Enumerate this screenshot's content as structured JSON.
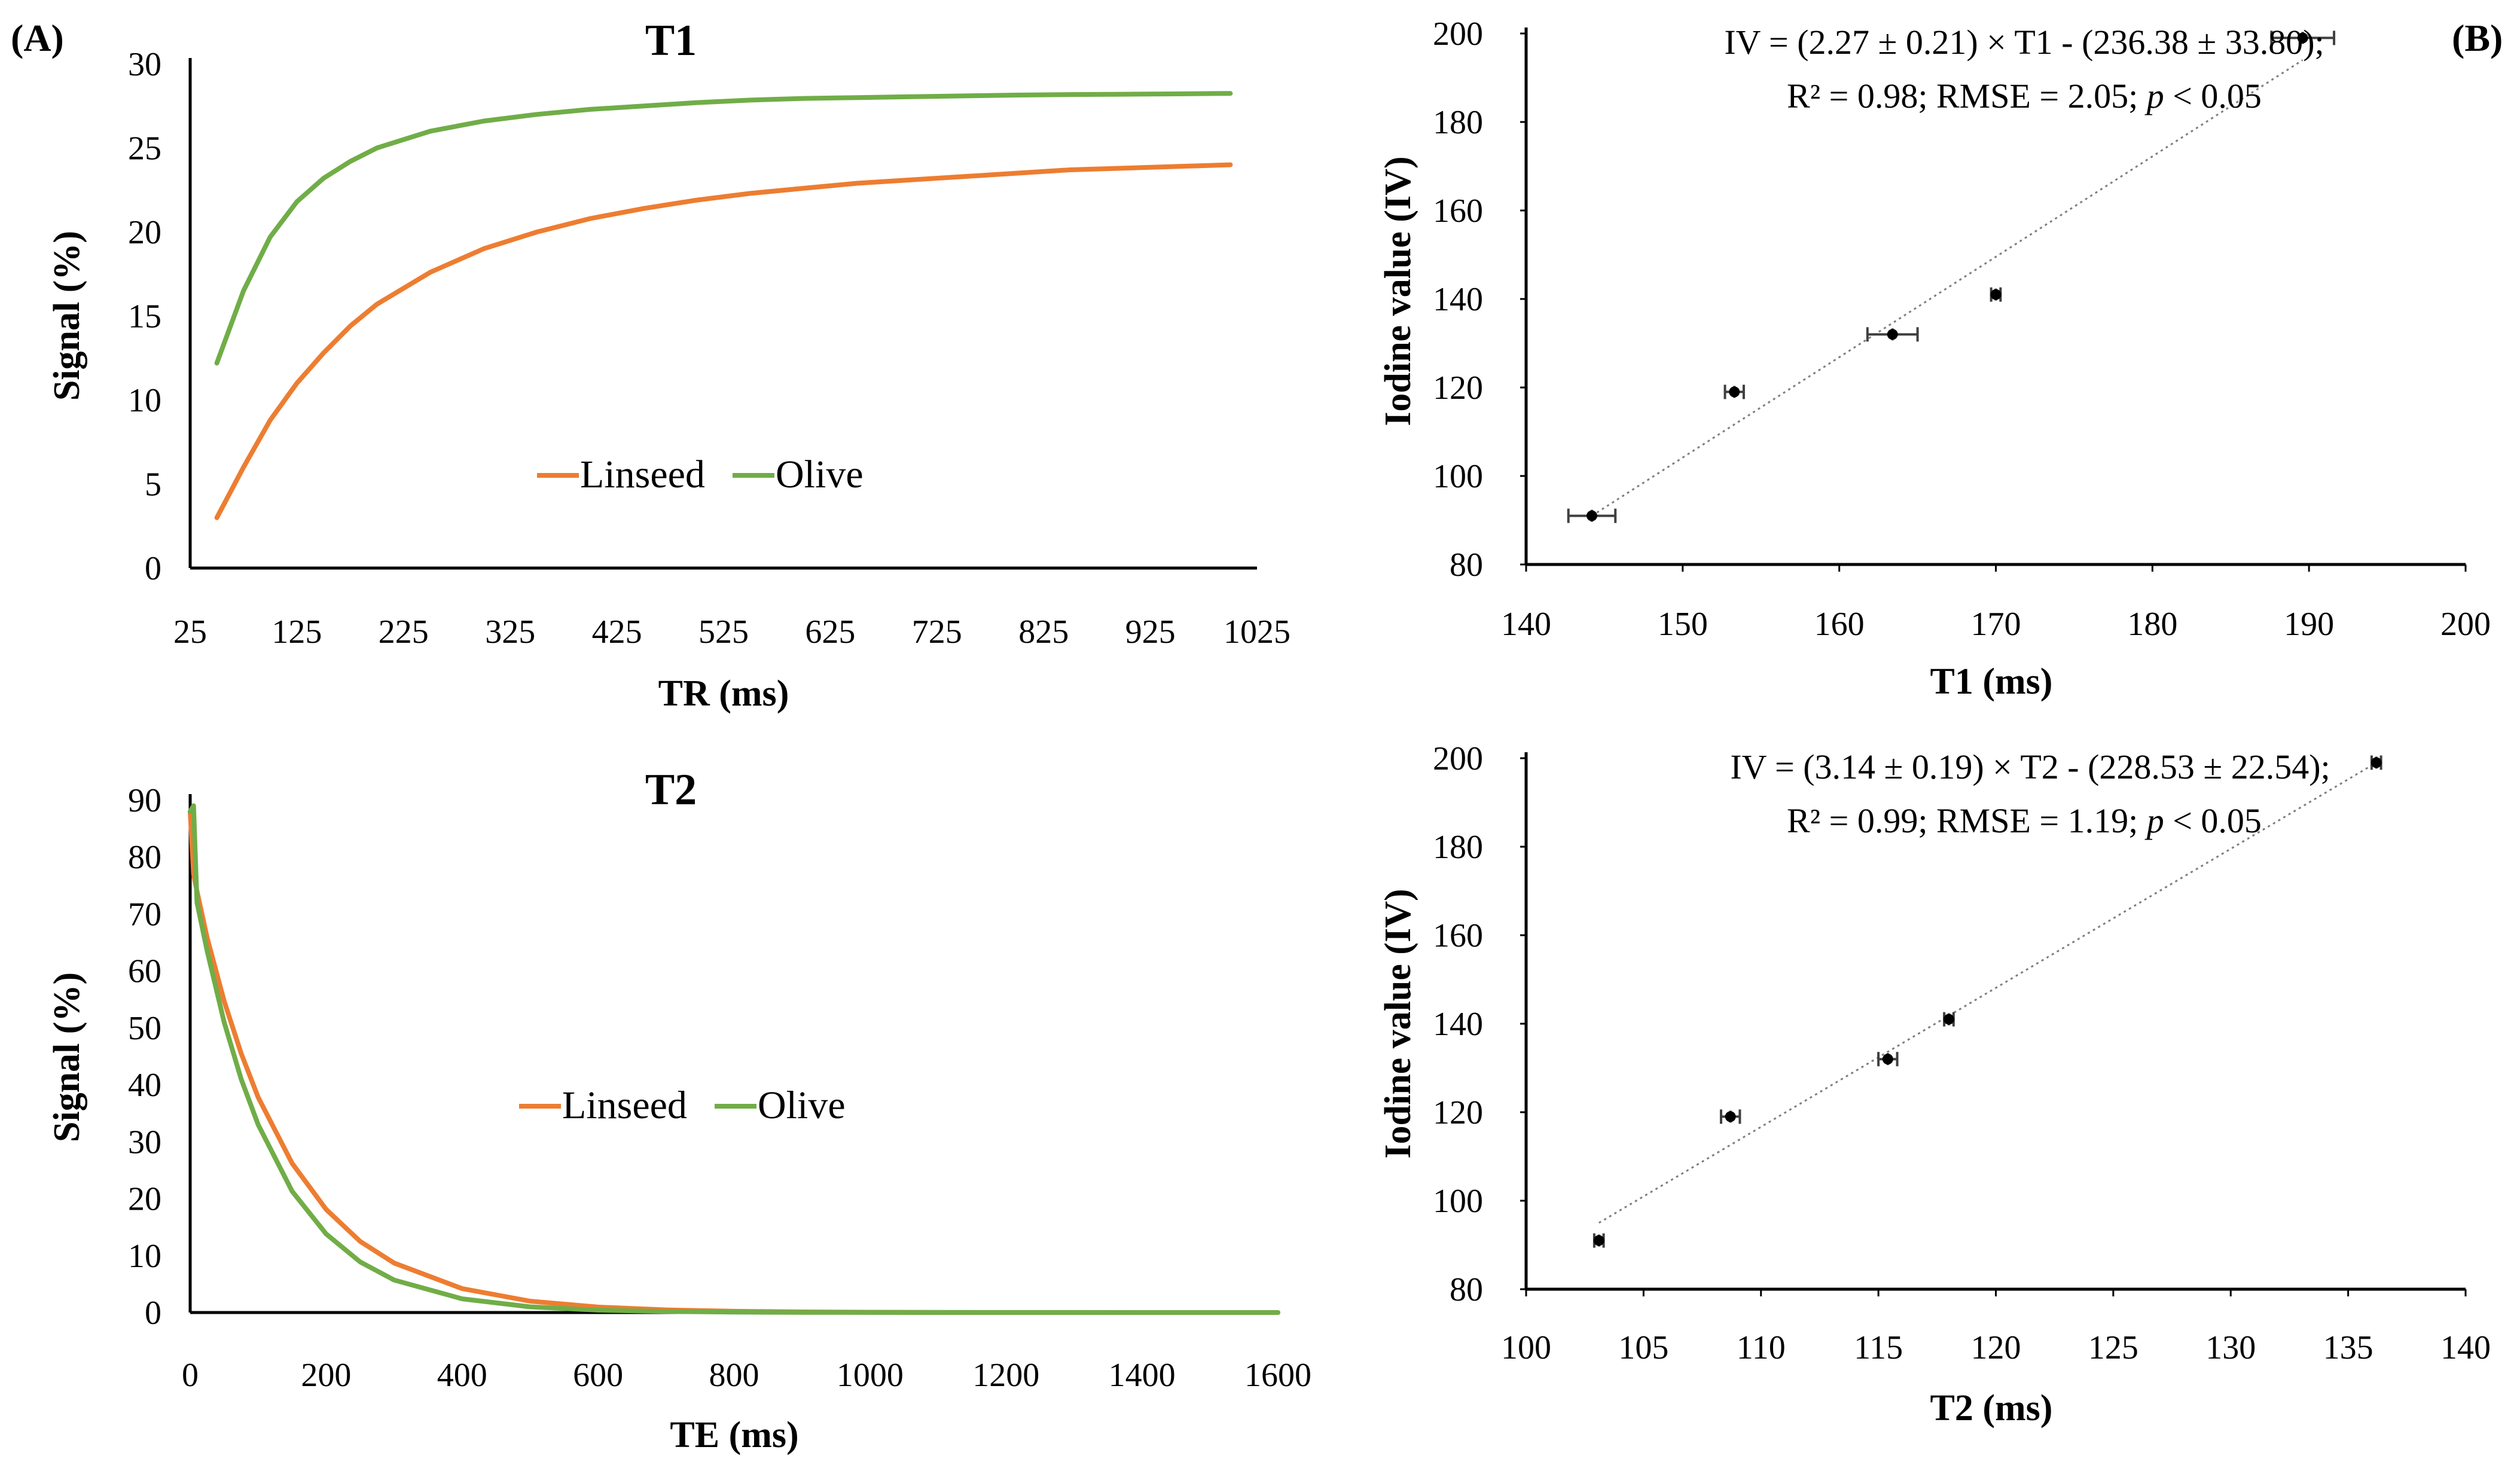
{
  "panel_labels": {
    "a": "(A)",
    "b": "(B)"
  },
  "colors": {
    "linseed": "#ED7D31",
    "olive": "#70AD47",
    "axis": "#000000",
    "trendline": "#7F7F7F"
  },
  "chart_data": [
    {
      "id": "t1-signal",
      "type": "line",
      "title": "T1",
      "xlabel": "TR (ms)",
      "ylabel": "Signal (%)",
      "xlim": [
        25,
        1025
      ],
      "ylim": [
        0,
        30
      ],
      "x_ticks": [
        "25",
        "125",
        "225",
        "325",
        "425",
        "525",
        "625",
        "725",
        "825",
        "925",
        "1025"
      ],
      "y_ticks": [
        "0",
        "5",
        "10",
        "15",
        "20",
        "25",
        "30"
      ],
      "legend_position": "center",
      "series": [
        {
          "name": "Linseed",
          "color": "#ED7D31",
          "x": [
            50,
            75,
            100,
            125,
            150,
            175,
            200,
            250,
            300,
            350,
            400,
            450,
            500,
            550,
            600,
            650,
            700,
            750,
            800,
            850,
            900,
            950,
            1000
          ],
          "y": [
            3.0,
            6.0,
            8.8,
            11.0,
            12.8,
            14.4,
            15.7,
            17.6,
            19.0,
            20.0,
            20.8,
            21.4,
            21.9,
            22.3,
            22.6,
            22.9,
            23.1,
            23.3,
            23.5,
            23.7,
            23.8,
            23.9,
            24.0
          ]
        },
        {
          "name": "Olive",
          "color": "#70AD47",
          "x": [
            50,
            75,
            100,
            125,
            150,
            175,
            200,
            250,
            300,
            350,
            400,
            450,
            500,
            550,
            600,
            650,
            700,
            750,
            800,
            850,
            900,
            950,
            1000
          ],
          "y": [
            12.2,
            16.5,
            19.7,
            21.8,
            23.2,
            24.2,
            25.0,
            26.0,
            26.6,
            27.0,
            27.3,
            27.5,
            27.7,
            27.85,
            27.95,
            28.0,
            28.05,
            28.1,
            28.15,
            28.18,
            28.2,
            28.22,
            28.25
          ]
        }
      ]
    },
    {
      "id": "t2-signal",
      "type": "line",
      "title": "T2",
      "xlabel": "TE (ms)",
      "ylabel": "Signal (%)",
      "xlim": [
        0,
        1600
      ],
      "ylim": [
        0,
        90
      ],
      "x_ticks": [
        "0",
        "200",
        "400",
        "600",
        "800",
        "1000",
        "1200",
        "1400",
        "1600"
      ],
      "y_ticks": [
        "0",
        "10",
        "20",
        "30",
        "40",
        "50",
        "60",
        "70",
        "80",
        "90"
      ],
      "legend_position": "center",
      "series": [
        {
          "name": "Linseed",
          "color": "#ED7D31",
          "x": [
            0,
            5,
            10,
            25,
            50,
            75,
            100,
            150,
            200,
            250,
            300,
            400,
            500,
            600,
            700,
            800,
            900,
            1000,
            1100,
            1200,
            1300,
            1400,
            1500,
            1600
          ],
          "y": [
            88,
            77,
            74,
            65.8,
            54.7,
            45.5,
            37.8,
            26.2,
            18.1,
            12.5,
            8.7,
            4.2,
            2.0,
            0.96,
            0.46,
            0.22,
            0.11,
            0.05,
            0.025,
            0.012,
            0.006,
            0.003,
            0.0015,
            0.0007
          ]
        },
        {
          "name": "Olive",
          "color": "#70AD47",
          "x": [
            0,
            5,
            10,
            25,
            50,
            75,
            100,
            150,
            200,
            250,
            300,
            400,
            500,
            600,
            700,
            800,
            900,
            1000,
            1100,
            1200,
            1300,
            1400,
            1500,
            1600
          ],
          "y": [
            88,
            89,
            72,
            63.5,
            51.0,
            41.0,
            33.0,
            21.3,
            13.8,
            8.9,
            5.7,
            2.4,
            1.0,
            0.42,
            0.18,
            0.07,
            0.03,
            0.013,
            0.005,
            0.002,
            0.001,
            0.0004,
            0.0002,
            0.0001
          ]
        }
      ]
    },
    {
      "id": "iv-vs-t1",
      "type": "scatter",
      "xlabel": "T1 (ms)",
      "ylabel": "Iodine value (IV)",
      "xlim": [
        140,
        200
      ],
      "ylim": [
        80,
        200
      ],
      "x_ticks": [
        "140",
        "150",
        "160",
        "170",
        "180",
        "190",
        "200"
      ],
      "y_ticks": [
        "80",
        "100",
        "120",
        "140",
        "160",
        "180",
        "200"
      ],
      "equation_line1": "IV = (2.27 ± 0.21) × T1 - (236.38 ± 33.80);",
      "equation_line2_prefix": "R² = 0.98; RMSE = 2.05; ",
      "equation_line2_p": "p",
      "equation_line2_suffix": " < 0.05",
      "trendline": {
        "x": [
          144.2,
          189.6
        ],
        "y": [
          91.0,
          194.0
        ]
      },
      "points": [
        {
          "x": 144.2,
          "y": 91,
          "xerr": 1.5
        },
        {
          "x": 153.3,
          "y": 119,
          "xerr": 0.6
        },
        {
          "x": 163.4,
          "y": 132,
          "xerr": 1.6
        },
        {
          "x": 170.0,
          "y": 141,
          "xerr": 0.3
        },
        {
          "x": 189.6,
          "y": 199,
          "xerr": 2.0
        }
      ]
    },
    {
      "id": "iv-vs-t2",
      "type": "scatter",
      "xlabel": "T2 (ms)",
      "ylabel": "Iodine value (IV)",
      "xlim": [
        100,
        140
      ],
      "ylim": [
        80,
        200
      ],
      "x_ticks": [
        "100",
        "105",
        "110",
        "115",
        "120",
        "125",
        "130",
        "135",
        "140"
      ],
      "y_ticks": [
        "80",
        "100",
        "120",
        "140",
        "160",
        "180",
        "200"
      ],
      "equation_line1": "IV = (3.14 ± 0.19) × T2 - (228.53 ± 22.54);",
      "equation_line2_prefix": "R² = 0.99; RMSE = 1.19; ",
      "equation_line2_p": "p",
      "equation_line2_suffix": " < 0.05",
      "trendline": {
        "x": [
          103.1,
          136.2
        ],
        "y": [
          95.0,
          199.0
        ]
      },
      "points": [
        {
          "x": 103.1,
          "y": 91,
          "xerr": 0.2
        },
        {
          "x": 108.7,
          "y": 119,
          "xerr": 0.4
        },
        {
          "x": 115.4,
          "y": 132,
          "xerr": 0.4
        },
        {
          "x": 118.0,
          "y": 141,
          "xerr": 0.2
        },
        {
          "x": 136.2,
          "y": 199,
          "xerr": 0.2
        }
      ]
    }
  ]
}
